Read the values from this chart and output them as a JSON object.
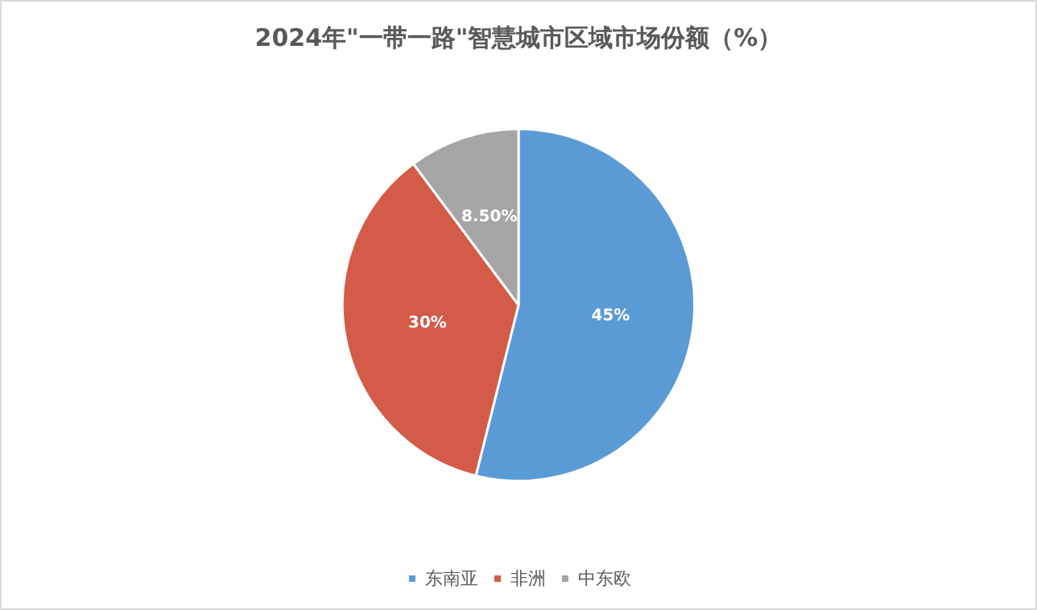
{
  "chart_data": {
    "type": "pie",
    "title": "2024年\"一带一路\"智慧城市区域市场份额（%）",
    "categories": [
      "东南亚",
      "非洲",
      "中东欧"
    ],
    "values": [
      45,
      30,
      8.5
    ],
    "value_labels": [
      "45%",
      "30%",
      "8.50%"
    ],
    "colors": [
      "#5b9bd5",
      "#d35b47",
      "#a5a5a5"
    ],
    "legend": "bottom"
  }
}
